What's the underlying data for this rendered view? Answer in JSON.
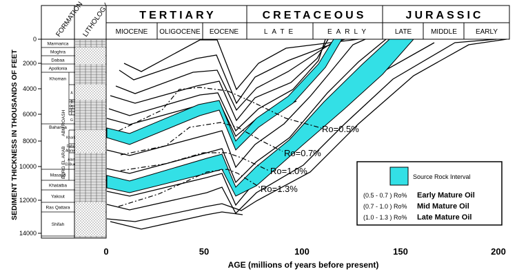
{
  "header": {
    "formation_label": "FORMATION",
    "lithology_label": "LITHOLOGY",
    "periods": [
      "TERTIARY",
      "CRETACEOUS",
      "JURASSIC"
    ],
    "epochs": [
      "MIOCENE",
      "OLIGOCENE",
      "EOCENE",
      "LATE",
      "EARLY",
      "LATE",
      "MIDDLE",
      "EARLY"
    ]
  },
  "formations": [
    "Marmarica",
    "Moghra",
    "Dabaa",
    "Apollonia",
    "Khoman",
    "A",
    "B",
    "C",
    "D",
    "E",
    "F",
    "G",
    "Bahariya",
    "Kharita",
    "Dahab",
    "Alamein",
    "Alam El-Bueib",
    "Masajid",
    "Khatatba",
    "Yakout",
    "Ras Qattara",
    "Shifah"
  ],
  "formation_groups": [
    "ABU ROASH",
    "BURG EL ARAB"
  ],
  "y_axis": {
    "title": "SEDIMENT THICKNESS IN THOUSANDS OF FEET",
    "ticks": [
      "0",
      "2000",
      "4000",
      "6000",
      "8000",
      "10000",
      "12000",
      "14000"
    ]
  },
  "x_axis": {
    "title": "AGE (millions of years before present)",
    "ticks": [
      "0",
      "50",
      "100",
      "150",
      "200"
    ]
  },
  "ro_labels": [
    "Ro=0.5%",
    "Ro=0.7%",
    "Ro=1.0%",
    "Ro=1.3%"
  ],
  "legend": {
    "title": "Source Rock Interval",
    "rows": [
      {
        "range": "(0.5 - 0.7 ) Ro%",
        "label": "Early Mature Oil"
      },
      {
        "range": "(0.7 - 1.0 ) Ro%",
        "label": "Mid Mature Oil"
      },
      {
        "range": "(1.0 - 1.3 ) Ro%",
        "label": "Late Mature Oil"
      }
    ]
  },
  "colors": {
    "source_rock": "#33e0e6",
    "line": "#000000"
  }
}
